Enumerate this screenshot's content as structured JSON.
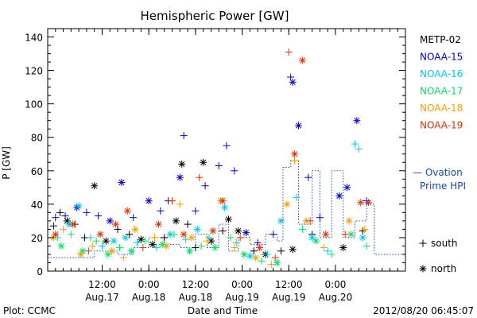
{
  "chart_data": {
    "type": "scatter",
    "title": "Hemispheric Power [GW]",
    "xlabel": "Date and Time",
    "ylabel": "P [GW]",
    "ylim": [
      0,
      145
    ],
    "yticks": [
      0,
      20,
      40,
      60,
      80,
      100,
      120,
      140
    ],
    "xlim": [
      "2012-08-16T22:00",
      "2012-08-20T18:00"
    ],
    "xticks": [
      {
        "t": "2012-08-17T12:00",
        "time": "12:00",
        "date": "Aug.17"
      },
      {
        "t": "2012-08-18T00:00",
        "time": "0:00",
        "date": "Aug.18"
      },
      {
        "t": "2012-08-18T12:00",
        "time": "12:00",
        "date": "Aug.18"
      },
      {
        "t": "2012-08-19T00:00",
        "time": "0:00",
        "date": "Aug.19"
      },
      {
        "t": "2012-08-19T12:00",
        "time": "12:00",
        "date": "Aug.19"
      },
      {
        "t": "2012-08-20T00:00",
        "time": "0:00",
        "date": "Aug.20"
      }
    ],
    "grid": false,
    "legend_position": "right",
    "series": [
      {
        "name": "METP-02",
        "color": "#000000",
        "points": [
          [
            "2012-08-16T23:30",
            27,
            "+"
          ],
          [
            "2012-08-17T01:10",
            35,
            "+"
          ],
          [
            "2012-08-17T03:00",
            30,
            "*"
          ],
          [
            "2012-08-17T05:00",
            28,
            "+"
          ],
          [
            "2012-08-17T07:30",
            20,
            "+"
          ],
          [
            "2012-08-17T10:00",
            51,
            "*"
          ],
          [
            "2012-08-17T13:00",
            18,
            "*"
          ],
          [
            "2012-08-17T16:00",
            25,
            "+"
          ],
          [
            "2012-08-17T19:00",
            22,
            "+"
          ],
          [
            "2012-08-17T22:00",
            19,
            "*"
          ],
          [
            "2012-08-18T01:00",
            16,
            "*"
          ],
          [
            "2012-08-18T04:00",
            20,
            "+"
          ],
          [
            "2012-08-18T07:00",
            30,
            "*"
          ],
          [
            "2012-08-18T08:30",
            64,
            "*"
          ],
          [
            "2012-08-18T10:00",
            28,
            "+"
          ],
          [
            "2012-08-18T12:00",
            14,
            "+"
          ],
          [
            "2012-08-18T14:00",
            65,
            "*"
          ],
          [
            "2012-08-18T16:00",
            18,
            "*"
          ],
          [
            "2012-08-18T19:00",
            24,
            "+"
          ],
          [
            "2012-08-18T20:30",
            31,
            "*"
          ],
          [
            "2012-08-18T23:00",
            24,
            "*"
          ],
          [
            "2012-08-19T03:00",
            12,
            "+"
          ],
          [
            "2012-08-19T06:00",
            10,
            "*"
          ],
          [
            "2012-08-19T10:00",
            12,
            "+"
          ],
          [
            "2012-08-19T13:00",
            13,
            "*"
          ],
          [
            "2012-08-19T18:00",
            22,
            "+"
          ],
          [
            "2012-08-20T02:00",
            14,
            "*"
          ],
          [
            "2012-08-20T07:00",
            24,
            "+"
          ]
        ]
      },
      {
        "name": "NOAA-15",
        "color": "#0000cc",
        "points": [
          [
            "2012-08-17T00:00",
            32,
            "+"
          ],
          [
            "2012-08-17T02:30",
            33,
            "+"
          ],
          [
            "2012-08-17T05:30",
            38,
            "*"
          ],
          [
            "2012-08-17T08:00",
            35,
            "+"
          ],
          [
            "2012-08-17T11:00",
            33,
            "+"
          ],
          [
            "2012-08-17T14:00",
            30,
            "*"
          ],
          [
            "2012-08-17T17:00",
            53,
            "*"
          ],
          [
            "2012-08-17T20:00",
            32,
            "+"
          ],
          [
            "2012-08-18T00:00",
            42,
            "*"
          ],
          [
            "2012-08-18T03:00",
            36,
            "+"
          ],
          [
            "2012-08-18T05:00",
            42,
            "+"
          ],
          [
            "2012-08-18T08:00",
            56,
            "*"
          ],
          [
            "2012-08-18T09:00",
            81,
            "+"
          ],
          [
            "2012-08-18T12:00",
            36,
            "+"
          ],
          [
            "2012-08-18T14:30",
            51,
            "+"
          ],
          [
            "2012-08-18T18:00",
            63,
            "+"
          ],
          [
            "2012-08-18T20:00",
            75,
            "+"
          ],
          [
            "2012-08-18T22:00",
            60,
            "+"
          ],
          [
            "2012-08-19T01:00",
            23,
            "*"
          ],
          [
            "2012-08-19T04:00",
            17,
            "+"
          ],
          [
            "2012-08-19T08:00",
            22,
            "+"
          ],
          [
            "2012-08-19T12:30",
            116,
            "+"
          ],
          [
            "2012-08-19T13:00",
            113,
            "*"
          ],
          [
            "2012-08-19T14:30",
            87,
            "*"
          ],
          [
            "2012-08-19T17:00",
            56,
            "+"
          ],
          [
            "2012-08-19T20:00",
            32,
            "+"
          ],
          [
            "2012-08-20T01:00",
            45,
            "*"
          ],
          [
            "2012-08-20T03:00",
            50,
            "*"
          ],
          [
            "2012-08-20T05:30",
            90,
            "*"
          ],
          [
            "2012-08-20T08:00",
            42,
            "+"
          ]
        ]
      },
      {
        "name": "NOAA-16",
        "color": "#00c8e0",
        "points": [
          [
            "2012-08-17T00:30",
            20,
            "+"
          ],
          [
            "2012-08-17T03:30",
            28,
            "*"
          ],
          [
            "2012-08-17T06:00",
            39,
            "*"
          ],
          [
            "2012-08-17T09:00",
            20,
            "+"
          ],
          [
            "2012-08-17T12:00",
            15,
            "+"
          ],
          [
            "2012-08-17T15:00",
            18,
            "*"
          ],
          [
            "2012-08-17T18:00",
            20,
            "*"
          ],
          [
            "2012-08-17T21:00",
            17,
            "+"
          ],
          [
            "2012-08-18T02:00",
            14,
            "+"
          ],
          [
            "2012-08-18T05:30",
            22,
            "*"
          ],
          [
            "2012-08-18T09:30",
            19,
            "+"
          ],
          [
            "2012-08-18T12:30",
            25,
            "*"
          ],
          [
            "2012-08-18T15:30",
            20,
            "+"
          ],
          [
            "2012-08-18T19:30",
            38,
            "*"
          ],
          [
            "2012-08-18T22:30",
            17,
            "+"
          ],
          [
            "2012-08-19T02:00",
            9,
            "*"
          ],
          [
            "2012-08-19T06:30",
            10,
            "+"
          ],
          [
            "2012-08-19T10:00",
            30,
            "*"
          ],
          [
            "2012-08-19T14:00",
            44,
            "+"
          ],
          [
            "2012-08-19T18:00",
            20,
            "*"
          ],
          [
            "2012-08-19T22:00",
            12,
            "+"
          ],
          [
            "2012-08-20T05:00",
            76,
            "+"
          ],
          [
            "2012-08-20T06:00",
            73,
            "+"
          ],
          [
            "2012-08-20T07:00",
            20,
            "*"
          ]
        ]
      },
      {
        "name": "NOAA-17",
        "color": "#00e060",
        "points": [
          [
            "2012-08-17T01:30",
            15,
            "*"
          ],
          [
            "2012-08-17T04:00",
            22,
            "+"
          ],
          [
            "2012-08-17T07:00",
            12,
            "*"
          ],
          [
            "2012-08-17T10:30",
            18,
            "+"
          ],
          [
            "2012-08-17T13:30",
            10,
            "*"
          ],
          [
            "2012-08-17T16:30",
            14,
            "+"
          ],
          [
            "2012-08-17T19:30",
            12,
            "*"
          ],
          [
            "2012-08-17T23:00",
            18,
            "+"
          ],
          [
            "2012-08-18T03:30",
            16,
            "*"
          ],
          [
            "2012-08-18T06:30",
            22,
            "+"
          ],
          [
            "2012-08-18T10:30",
            12,
            "*"
          ],
          [
            "2012-08-18T13:30",
            15,
            "+"
          ],
          [
            "2012-08-18T17:00",
            14,
            "*"
          ],
          [
            "2012-08-18T21:00",
            20,
            "+"
          ],
          [
            "2012-08-19T00:30",
            10,
            "*"
          ],
          [
            "2012-08-19T05:00",
            6,
            "+"
          ],
          [
            "2012-08-19T09:00",
            5,
            "*"
          ],
          [
            "2012-08-19T15:30",
            25,
            "+"
          ],
          [
            "2012-08-19T19:00",
            18,
            "*"
          ],
          [
            "2012-08-19T23:00",
            10,
            "+"
          ],
          [
            "2012-08-20T04:00",
            22,
            "*"
          ],
          [
            "2012-08-20T08:00",
            15,
            "+"
          ]
        ]
      },
      {
        "name": "NOAA-18",
        "color": "#f0a000",
        "points": [
          [
            "2012-08-16T23:30",
            20,
            "*"
          ],
          [
            "2012-08-17T02:00",
            25,
            "+"
          ],
          [
            "2012-08-17T06:30",
            10,
            "*"
          ],
          [
            "2012-08-17T09:30",
            15,
            "+"
          ],
          [
            "2012-08-17T14:30",
            12,
            "*"
          ],
          [
            "2012-08-17T17:30",
            8,
            "+"
          ],
          [
            "2012-08-17T20:30",
            25,
            "*"
          ],
          [
            "2012-08-18T01:30",
            20,
            "+"
          ],
          [
            "2012-08-18T04:30",
            15,
            "*"
          ],
          [
            "2012-08-18T08:00",
            40,
            "+"
          ],
          [
            "2012-08-18T11:00",
            20,
            "*"
          ],
          [
            "2012-08-18T15:00",
            18,
            "+"
          ],
          [
            "2012-08-18T18:30",
            42,
            "*"
          ],
          [
            "2012-08-18T22:00",
            14,
            "+"
          ],
          [
            "2012-08-19T03:30",
            8,
            "*"
          ],
          [
            "2012-08-19T07:30",
            4,
            "+"
          ],
          [
            "2012-08-19T11:30",
            40,
            "*"
          ],
          [
            "2012-08-19T13:30",
            66,
            "+"
          ],
          [
            "2012-08-19T16:30",
            30,
            "*"
          ],
          [
            "2012-08-19T21:00",
            14,
            "+"
          ],
          [
            "2012-08-20T03:30",
            30,
            "*"
          ],
          [
            "2012-08-20T07:30",
            25,
            "+"
          ]
        ]
      },
      {
        "name": "NOAA-19",
        "color": "#e03000",
        "points": [
          [
            "2012-08-17T00:00",
            22,
            "*"
          ],
          [
            "2012-08-17T04:30",
            28,
            "*"
          ],
          [
            "2012-08-17T08:30",
            12,
            "+"
          ],
          [
            "2012-08-17T11:30",
            22,
            "*"
          ],
          [
            "2012-08-17T15:30",
            28,
            "*"
          ],
          [
            "2012-08-17T18:30",
            36,
            "*"
          ],
          [
            "2012-08-17T22:30",
            14,
            "+"
          ],
          [
            "2012-08-18T02:30",
            28,
            "*"
          ],
          [
            "2012-08-18T06:00",
            42,
            "+"
          ],
          [
            "2012-08-18T09:00",
            22,
            "*"
          ],
          [
            "2012-08-18T13:00",
            56,
            "+"
          ],
          [
            "2012-08-18T16:30",
            24,
            "*"
          ],
          [
            "2012-08-18T19:00",
            42,
            "*"
          ],
          [
            "2012-08-18T23:30",
            20,
            "+"
          ],
          [
            "2012-08-19T04:30",
            14,
            "*"
          ],
          [
            "2012-08-19T08:30",
            8,
            "+"
          ],
          [
            "2012-08-19T12:00",
            131,
            "+"
          ],
          [
            "2012-08-19T13:30",
            70,
            "*"
          ],
          [
            "2012-08-19T15:30",
            126,
            "*"
          ],
          [
            "2012-08-19T17:30",
            30,
            "+"
          ],
          [
            "2012-08-19T21:30",
            22,
            "*"
          ],
          [
            "2012-08-20T02:30",
            22,
            "+"
          ],
          [
            "2012-08-20T06:30",
            41,
            "*"
          ],
          [
            "2012-08-20T08:30",
            41,
            "*"
          ]
        ]
      }
    ],
    "ovation": {
      "name": "— Ovation Prime HPI",
      "label_line1": "— Ovation",
      "label_line2": "Prime HPI",
      "color": "#1a4aa8",
      "steps": [
        [
          "2012-08-16T22:00",
          8
        ],
        [
          "2012-08-17T10:00",
          12
        ],
        [
          "2012-08-17T16:00",
          10
        ],
        [
          "2012-08-17T20:00",
          14
        ],
        [
          "2012-08-18T00:00",
          20
        ],
        [
          "2012-08-18T04:00",
          16
        ],
        [
          "2012-08-18T08:00",
          14
        ],
        [
          "2012-08-18T12:00",
          22
        ],
        [
          "2012-08-18T15:00",
          14
        ],
        [
          "2012-08-18T18:00",
          28
        ],
        [
          "2012-08-18T20:30",
          12
        ],
        [
          "2012-08-18T23:00",
          20
        ],
        [
          "2012-08-19T02:00",
          16
        ],
        [
          "2012-08-19T06:00",
          22
        ],
        [
          "2012-08-19T09:00",
          18
        ],
        [
          "2012-08-19T10:30",
          62
        ],
        [
          "2012-08-19T12:30",
          66
        ],
        [
          "2012-08-19T14:30",
          28
        ],
        [
          "2012-08-19T18:00",
          60
        ],
        [
          "2012-08-19T20:00",
          20
        ],
        [
          "2012-08-19T23:00",
          60
        ],
        [
          "2012-08-20T02:00",
          20
        ],
        [
          "2012-08-20T05:00",
          30
        ],
        [
          "2012-08-20T08:00",
          40
        ],
        [
          "2012-08-20T10:00",
          10
        ]
      ]
    },
    "marker_legend": [
      {
        "symbol": "+",
        "label": "south"
      },
      {
        "symbol": "*",
        "label": "north"
      }
    ]
  },
  "footer": {
    "left": "Plot: CCMC",
    "right": "2012/08/20 06:45:07"
  }
}
